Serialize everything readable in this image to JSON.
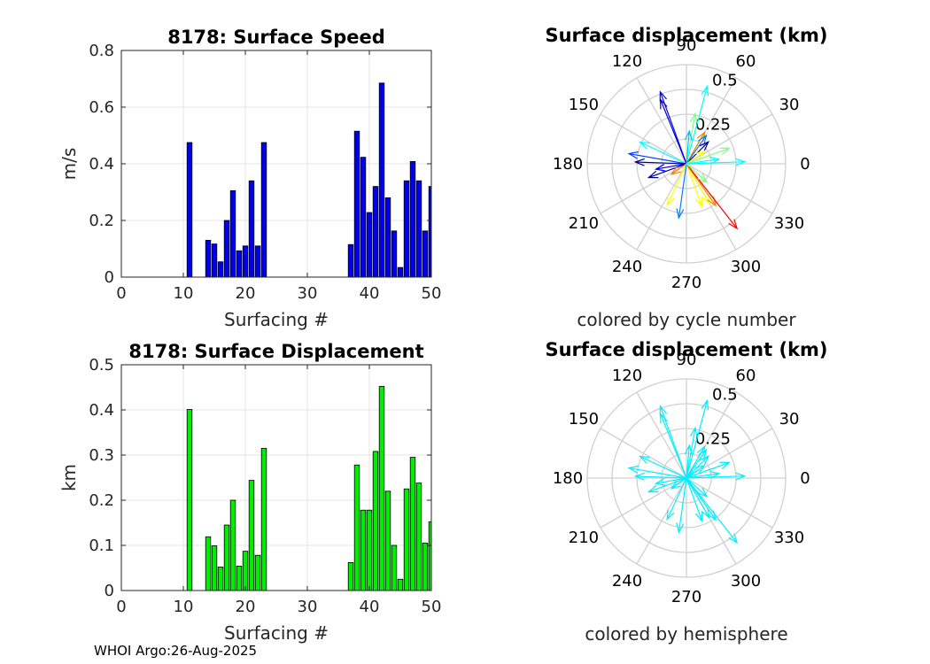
{
  "footer": "WHOI Argo:26-Aug-2025",
  "colors": {
    "speed_bar": "#0000ee",
    "displacement_bar": "#00ee00",
    "hemisphere_arrow": "#00eeff",
    "cycle_colormap": [
      "#00008f",
      "#0000ff",
      "#0080ff",
      "#00ffff",
      "#80ff80",
      "#ffff00",
      "#ff8000",
      "#ff0000"
    ]
  },
  "chart_data": [
    {
      "id": "speed",
      "type": "bar",
      "title": "8178: Surface Speed",
      "xlabel": "Surfacing #",
      "ylabel": "m/s",
      "xlim": [
        0,
        50
      ],
      "ylim": [
        0,
        0.8
      ],
      "xticks": [
        "0",
        "10",
        "20",
        "30",
        "40",
        "50"
      ],
      "yticks": [
        "0",
        "0.2",
        "0.4",
        "0.6",
        "0.8"
      ],
      "grid": true,
      "x": [
        11,
        14,
        15,
        16,
        17,
        18,
        19,
        20,
        21,
        22,
        23,
        37,
        38,
        39,
        40,
        41,
        42,
        43,
        44,
        45,
        46,
        47,
        48,
        49,
        50
      ],
      "values": [
        0.475,
        0.13,
        0.117,
        0.054,
        0.2,
        0.305,
        0.093,
        0.11,
        0.34,
        0.11,
        0.475,
        0.115,
        0.515,
        0.423,
        0.228,
        0.32,
        0.685,
        0.28,
        0.163,
        0.034,
        0.34,
        0.408,
        0.34,
        0.163,
        0.32
      ]
    },
    {
      "id": "displacement",
      "type": "bar",
      "title": "8178: Surface Displacement",
      "xlabel": "Surfacing #",
      "ylabel": "km",
      "xlim": [
        0,
        50
      ],
      "ylim": [
        0,
        0.5
      ],
      "xticks": [
        "0",
        "10",
        "20",
        "30",
        "40",
        "50"
      ],
      "yticks": [
        "0",
        "0.1",
        "0.2",
        "0.3",
        "0.4",
        "0.5"
      ],
      "grid": true,
      "x": [
        11,
        14,
        15,
        16,
        17,
        18,
        19,
        20,
        21,
        22,
        23,
        37,
        38,
        39,
        40,
        41,
        42,
        43,
        44,
        45,
        46,
        47,
        48,
        49,
        50
      ],
      "values": [
        0.401,
        0.119,
        0.099,
        0.052,
        0.145,
        0.2,
        0.054,
        0.087,
        0.244,
        0.078,
        0.315,
        0.062,
        0.278,
        0.178,
        0.178,
        0.308,
        0.452,
        0.22,
        0.1,
        0.025,
        0.225,
        0.295,
        0.238,
        0.105,
        0.152
      ]
    },
    {
      "id": "compass_cycle",
      "type": "compass",
      "title": "Surface displacement (km)",
      "subtitle": "colored by cycle number",
      "rlim": [
        0,
        0.5
      ],
      "rticks": [
        "0.25",
        "0.5"
      ],
      "angle_ticks": [
        "0",
        "30",
        "60",
        "90",
        "120",
        "150",
        "180",
        "210",
        "240",
        "270",
        "300",
        "330"
      ],
      "vectors": [
        {
          "angle": 110,
          "r": 0.42,
          "color": "#0000ff"
        },
        {
          "angle": 112,
          "r": 0.38,
          "color": "#0000cc"
        },
        {
          "angle": 75,
          "r": 0.44,
          "color": "#00ffff"
        },
        {
          "angle": 80,
          "r": 0.28,
          "color": "#80ff80"
        },
        {
          "angle": 85,
          "r": 0.18,
          "color": "#00c0ff"
        },
        {
          "angle": 60,
          "r": 0.2,
          "color": "#ff8000"
        },
        {
          "angle": 55,
          "r": 0.19,
          "color": "#0080ff"
        },
        {
          "angle": 45,
          "r": 0.17,
          "color": "#0000a0"
        },
        {
          "angle": 35,
          "r": 0.12,
          "color": "#ffff00"
        },
        {
          "angle": 20,
          "r": 0.25,
          "color": "#80ff80"
        },
        {
          "angle": 8,
          "r": 0.18,
          "color": "#00ffff"
        },
        {
          "angle": 2,
          "r": 0.32,
          "color": "#00ffff"
        },
        {
          "angle": 155,
          "r": 0.28,
          "color": "#00ffff"
        },
        {
          "angle": 170,
          "r": 0.32,
          "color": "#0040ff"
        },
        {
          "angle": 178,
          "r": 0.28,
          "color": "#00008f"
        },
        {
          "angle": 190,
          "r": 0.17,
          "color": "#0000ff"
        },
        {
          "angle": 200,
          "r": 0.22,
          "color": "#00008f"
        },
        {
          "angle": 215,
          "r": 0.1,
          "color": "#ff8000"
        },
        {
          "angle": 245,
          "r": 0.25,
          "color": "#ffff00"
        },
        {
          "angle": 262,
          "r": 0.3,
          "color": "#0080ff"
        },
        {
          "angle": 290,
          "r": 0.25,
          "color": "#ffff00"
        },
        {
          "angle": 300,
          "r": 0.25,
          "color": "#ffff00"
        },
        {
          "angle": 305,
          "r": 0.28,
          "color": "#ff8000"
        },
        {
          "angle": 308,
          "r": 0.45,
          "color": "#ff0000"
        },
        {
          "angle": 318,
          "r": 0.15,
          "color": "#80ff80"
        }
      ]
    },
    {
      "id": "compass_hemisphere",
      "type": "compass",
      "title": "Surface displacement (km)",
      "subtitle": "colored by hemisphere",
      "rlim": [
        0,
        0.5
      ],
      "rticks": [
        "0.25",
        "0.5"
      ],
      "angle_ticks": [
        "0",
        "30",
        "60",
        "90",
        "120",
        "150",
        "180",
        "210",
        "240",
        "270",
        "300",
        "330"
      ],
      "vectors": [
        {
          "angle": 110,
          "r": 0.42,
          "color": "#00eeff"
        },
        {
          "angle": 112,
          "r": 0.38,
          "color": "#00eeff"
        },
        {
          "angle": 75,
          "r": 0.44,
          "color": "#00eeff"
        },
        {
          "angle": 80,
          "r": 0.28,
          "color": "#00eeff"
        },
        {
          "angle": 85,
          "r": 0.18,
          "color": "#00eeff"
        },
        {
          "angle": 60,
          "r": 0.2,
          "color": "#00eeff"
        },
        {
          "angle": 55,
          "r": 0.19,
          "color": "#00eeff"
        },
        {
          "angle": 45,
          "r": 0.17,
          "color": "#00eeff"
        },
        {
          "angle": 35,
          "r": 0.12,
          "color": "#00eeff"
        },
        {
          "angle": 20,
          "r": 0.25,
          "color": "#00eeff"
        },
        {
          "angle": 8,
          "r": 0.18,
          "color": "#00eeff"
        },
        {
          "angle": 2,
          "r": 0.32,
          "color": "#00eeff"
        },
        {
          "angle": 155,
          "r": 0.28,
          "color": "#00eeff"
        },
        {
          "angle": 170,
          "r": 0.32,
          "color": "#00eeff"
        },
        {
          "angle": 178,
          "r": 0.28,
          "color": "#00eeff"
        },
        {
          "angle": 190,
          "r": 0.17,
          "color": "#00eeff"
        },
        {
          "angle": 200,
          "r": 0.22,
          "color": "#00eeff"
        },
        {
          "angle": 215,
          "r": 0.1,
          "color": "#00eeff"
        },
        {
          "angle": 245,
          "r": 0.25,
          "color": "#00eeff"
        },
        {
          "angle": 262,
          "r": 0.3,
          "color": "#00eeff"
        },
        {
          "angle": 290,
          "r": 0.25,
          "color": "#00eeff"
        },
        {
          "angle": 300,
          "r": 0.25,
          "color": "#00eeff"
        },
        {
          "angle": 305,
          "r": 0.28,
          "color": "#00eeff"
        },
        {
          "angle": 308,
          "r": 0.45,
          "color": "#00eeff"
        },
        {
          "angle": 318,
          "r": 0.15,
          "color": "#00eeff"
        }
      ]
    }
  ]
}
